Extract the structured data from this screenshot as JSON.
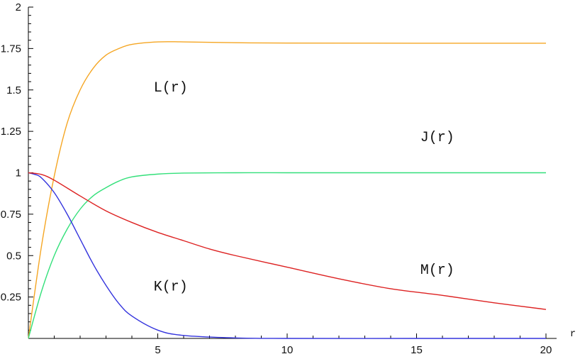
{
  "chart_data": {
    "type": "line",
    "xlabel": "r",
    "ylabel": "",
    "xlim": [
      0,
      20.5
    ],
    "ylim": [
      0,
      2
    ],
    "x_ticks": [
      {
        "value": 5,
        "label": "5"
      },
      {
        "value": 10,
        "label": "10"
      },
      {
        "value": 15,
        "label": "15"
      },
      {
        "value": 20,
        "label": "20"
      }
    ],
    "y_ticks": [
      {
        "value": 0.25,
        "label": "0.25"
      },
      {
        "value": 0.5,
        "label": "0.5"
      },
      {
        "value": 0.75,
        "label": "0.75"
      },
      {
        "value": 1,
        "label": "1"
      },
      {
        "value": 1.25,
        "label": "1.25"
      },
      {
        "value": 1.5,
        "label": "1.5"
      },
      {
        "value": 1.75,
        "label": "1.75"
      },
      {
        "value": 2,
        "label": "2"
      }
    ],
    "grid": false,
    "series": [
      {
        "name": "L(r)",
        "color": "#f5a623",
        "points": [
          [
            0,
            0
          ],
          [
            0.5,
            0.55
          ],
          [
            1,
            0.98
          ],
          [
            1.5,
            1.3
          ],
          [
            2,
            1.5
          ],
          [
            2.5,
            1.63
          ],
          [
            3,
            1.71
          ],
          [
            3.5,
            1.75
          ],
          [
            4,
            1.775
          ],
          [
            5,
            1.79
          ],
          [
            6,
            1.79
          ],
          [
            8,
            1.785
          ],
          [
            10,
            1.783
          ],
          [
            15,
            1.782
          ],
          [
            20,
            1.782
          ]
        ]
      },
      {
        "name": "J(r)",
        "color": "#33e07a",
        "points": [
          [
            0,
            0
          ],
          [
            0.5,
            0.28
          ],
          [
            1,
            0.5
          ],
          [
            1.5,
            0.66
          ],
          [
            2,
            0.78
          ],
          [
            2.5,
            0.86
          ],
          [
            3,
            0.91
          ],
          [
            3.5,
            0.95
          ],
          [
            4,
            0.975
          ],
          [
            5,
            0.992
          ],
          [
            6,
            0.998
          ],
          [
            8,
            1
          ],
          [
            10,
            1
          ],
          [
            15,
            1
          ],
          [
            20,
            1
          ]
        ]
      },
      {
        "name": "K(r)",
        "color": "#3333dd",
        "points": [
          [
            0,
            1
          ],
          [
            0.25,
            0.99
          ],
          [
            0.5,
            0.97
          ],
          [
            1,
            0.88
          ],
          [
            1.5,
            0.75
          ],
          [
            2,
            0.6
          ],
          [
            2.5,
            0.45
          ],
          [
            3,
            0.32
          ],
          [
            3.5,
            0.21
          ],
          [
            4,
            0.135
          ],
          [
            5,
            0.05
          ],
          [
            6,
            0.018
          ],
          [
            8,
            0.003
          ],
          [
            10,
            0
          ],
          [
            15,
            0
          ],
          [
            20,
            0
          ]
        ]
      },
      {
        "name": "M(r)",
        "color": "#dd2222",
        "points": [
          [
            0,
            1
          ],
          [
            0.5,
            0.99
          ],
          [
            1,
            0.955
          ],
          [
            2,
            0.86
          ],
          [
            3,
            0.77
          ],
          [
            4,
            0.7
          ],
          [
            5,
            0.64
          ],
          [
            6,
            0.59
          ],
          [
            7,
            0.54
          ],
          [
            8,
            0.5
          ],
          [
            10,
            0.43
          ],
          [
            12,
            0.36
          ],
          [
            14,
            0.3
          ],
          [
            16,
            0.26
          ],
          [
            18,
            0.215
          ],
          [
            20,
            0.175
          ]
        ]
      }
    ],
    "annotations": [
      {
        "text": "L(r)",
        "x": 5.5,
        "y": 1.49
      },
      {
        "text": "J(r)",
        "x": 15.8,
        "y": 1.19
      },
      {
        "text": "M(r)",
        "x": 15.8,
        "y": 0.39
      },
      {
        "text": "K(r)",
        "x": 5.5,
        "y": 0.29
      }
    ]
  }
}
